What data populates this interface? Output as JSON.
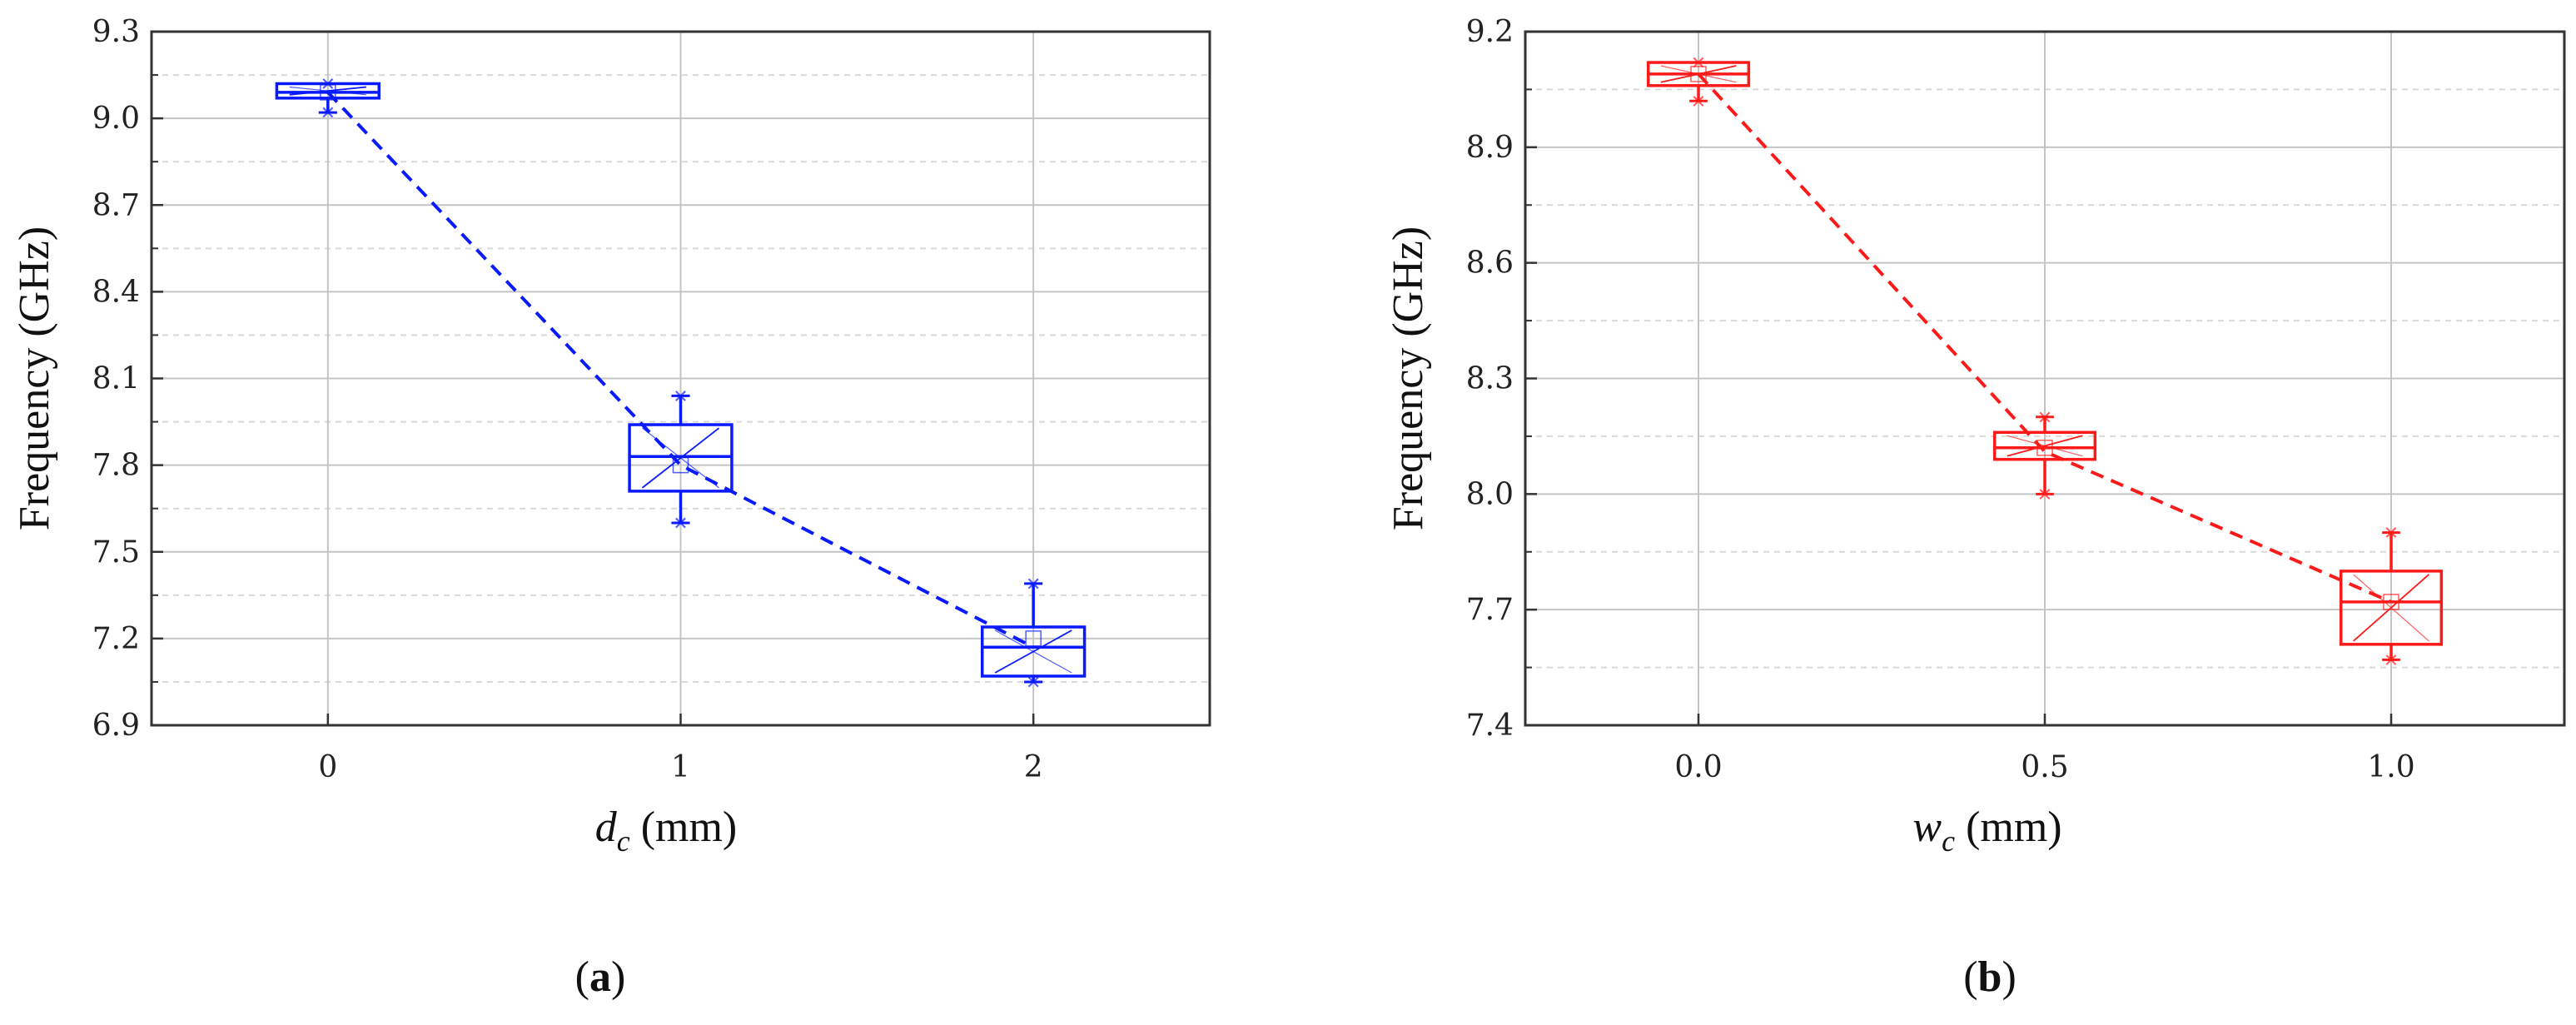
{
  "figure": {
    "panel_labels": [
      "(a)",
      "(b)"
    ]
  },
  "chart_data": [
    {
      "type": "box",
      "panel": "(a)",
      "color": "#0a1aff",
      "ylabel": "Frequency (GHz)",
      "xlabel_var": "d",
      "xlabel_sub": "c",
      "xlabel_unit": " (mm)",
      "ylim": [
        6.9,
        9.3
      ],
      "yticks": [
        "6.9",
        "7.2",
        "7.5",
        "7.8",
        "8.1",
        "8.4",
        "8.7",
        "9.0",
        "9.3"
      ],
      "xlim": [
        -0.5,
        2.5
      ],
      "categories": [
        "0",
        "1",
        "2"
      ],
      "x": [
        0,
        1,
        2
      ],
      "grid": true,
      "trend_line": "dashed",
      "boxes": [
        {
          "min": 9.02,
          "q1": 9.07,
          "median": 9.09,
          "q3": 9.12,
          "max": 9.12,
          "mean": 9.09
        },
        {
          "min": 7.6,
          "q1": 7.71,
          "median": 7.83,
          "q3": 7.94,
          "max": 8.04,
          "mean": 7.8
        },
        {
          "min": 7.05,
          "q1": 7.07,
          "median": 7.17,
          "q3": 7.24,
          "max": 7.39,
          "mean": 7.2
        }
      ],
      "trend_values": [
        9.09,
        7.8,
        7.17
      ]
    },
    {
      "type": "box",
      "panel": "(b)",
      "color": "#ff1a1a",
      "ylabel": "Frequency (GHz)",
      "xlabel_var": "w",
      "xlabel_sub": "c",
      "xlabel_unit": " (mm)",
      "ylim": [
        7.4,
        9.2
      ],
      "yticks": [
        "7.4",
        "7.7",
        "8.0",
        "8.3",
        "8.6",
        "8.9",
        "9.2"
      ],
      "xlim": [
        -0.25,
        1.25
      ],
      "categories": [
        "0.0",
        "0.5",
        "1.0"
      ],
      "x": [
        0,
        0.5,
        1.0
      ],
      "grid": true,
      "trend_line": "dashed",
      "boxes": [
        {
          "min": 9.02,
          "q1": 9.06,
          "median": 9.09,
          "q3": 9.12,
          "max": 9.12,
          "mean": 9.09
        },
        {
          "min": 8.0,
          "q1": 8.09,
          "median": 8.12,
          "q3": 8.16,
          "max": 8.2,
          "mean": 8.12
        },
        {
          "min": 7.57,
          "q1": 7.61,
          "median": 7.72,
          "q3": 7.8,
          "max": 7.9,
          "mean": 7.72
        }
      ],
      "trend_values": [
        9.09,
        8.11,
        7.72
      ]
    }
  ]
}
